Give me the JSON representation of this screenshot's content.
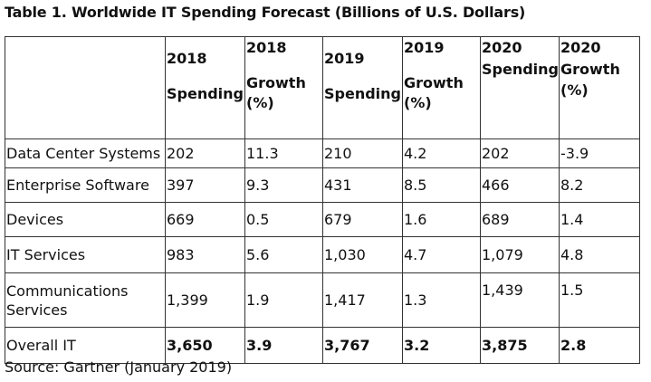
{
  "title": "Table 1. Worldwide IT Spending Forecast (Billions of U.S. Dollars)",
  "table": {
    "header": [
      [
        "2018",
        "Spending"
      ],
      [
        "2018",
        "Growth",
        "(%)"
      ],
      [
        "2019",
        "Spending"
      ],
      [
        "2019",
        "Growth",
        "(%)"
      ],
      [
        "2020",
        "Spending"
      ],
      [
        "2020",
        "Growth",
        "(%)"
      ]
    ],
    "rows": [
      [
        "Data Center Systems",
        "202",
        "11.3",
        "210",
        "4.2",
        "202",
        "-3.9"
      ],
      [
        "Enterprise Software",
        "397",
        "9.3",
        "431",
        "8.5",
        "466",
        "8.2"
      ],
      [
        "Devices",
        "669",
        "0.5",
        "679",
        "1.6",
        "689",
        "1.4"
      ],
      [
        "IT Services",
        "983",
        "5.6",
        "1,030",
        "4.7",
        "1,079",
        "4.8"
      ],
      [
        "Communications Services",
        "1,399",
        "1.9",
        "1,417",
        "1.3",
        "1,439",
        "1.5"
      ],
      [
        "Overall IT",
        "3,650",
        "3.9",
        "3,767",
        "3.2",
        "3,875",
        "2.8"
      ]
    ]
  },
  "source": "Source: Gartner (January 2019)"
}
